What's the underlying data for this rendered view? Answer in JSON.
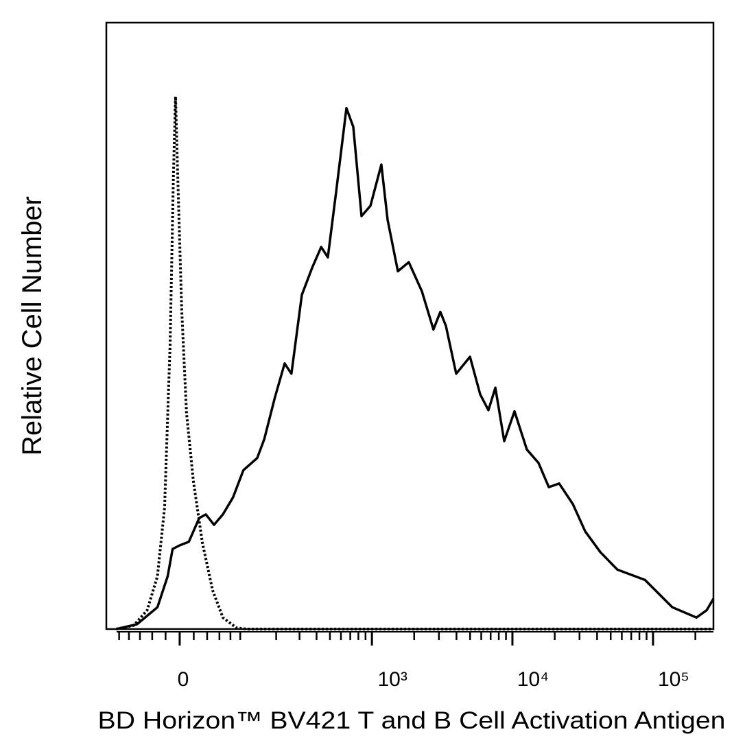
{
  "chart_data": {
    "type": "line",
    "title": "BD Horizon™ BV421 T and B Cell Activation Antigen",
    "y_label": "Relative Cell Number",
    "xscale": "biexponential",
    "xlim": [
      -130,
      269000
    ],
    "ylim": [
      0,
      100
    ],
    "xticks": [
      0,
      {
        "value": 1000,
        "label": "10³"
      },
      {
        "value": 10000,
        "label": "10⁴"
      },
      {
        "value": 100000,
        "label": "10⁵"
      }
    ],
    "xminorticks": [
      -100,
      -80,
      -60,
      -40,
      -20,
      20,
      40,
      60,
      80,
      100,
      200,
      300,
      400,
      500,
      600,
      700,
      800,
      900,
      2000,
      3000,
      4000,
      5000,
      6000,
      7000,
      8000,
      9000,
      20000,
      30000,
      40000,
      50000,
      60000,
      70000,
      80000,
      90000,
      200000
    ],
    "series": [
      {
        "color": "#000000",
        "dash": "solid",
        "x": [
          -106,
          -65,
          -32,
          -17,
          -10,
          0,
          13,
          28,
          38,
          51,
          66,
          85,
          107,
          141,
          161,
          195,
          232,
          261,
          312,
          372,
          432,
          483,
          554,
          657,
          736,
          843,
          976,
          1168,
          1293,
          1531,
          1832,
          2270,
          2743,
          3070,
          3363,
          3982,
          4988,
          5900,
          6751,
          7559,
          8746,
          10346,
          12668,
          15334,
          18146,
          21500,
          26918,
          32938,
          42140,
          55814,
          87634,
          137256,
          203562,
          240800,
          269000
        ],
        "values": [
          0,
          0.8,
          3.6,
          8.7,
          13.2,
          13.8,
          14.4,
          18.3,
          18.9,
          17.2,
          18.9,
          21.7,
          26.2,
          28.2,
          31.3,
          38.1,
          43.8,
          42.1,
          55.1,
          59.6,
          63.0,
          61.3,
          72.1,
          85.9,
          82.8,
          68.1,
          69.8,
          76.6,
          67.5,
          59.0,
          60.5,
          55.7,
          49.4,
          52.3,
          50.0,
          42.1,
          44.9,
          38.7,
          36.1,
          39.8,
          31.0,
          35.9,
          29.6,
          27.4,
          23.4,
          24.0,
          20.6,
          16.1,
          12.7,
          9.8,
          8.1,
          3.6,
          1.9,
          3.1,
          5.0
        ]
      },
      {
        "color": "#000000",
        "dash": "dotted",
        "x": [
          -106,
          -71,
          -48,
          -32,
          -21.5,
          -13.5,
          -8.7,
          -5.8,
          -2.9,
          2.9,
          9.7,
          19.5,
          32.6,
          48.6,
          66,
          92,
          115,
          269000
        ],
        "values": [
          0,
          0.6,
          3.1,
          8.7,
          20.0,
          47.1,
          75.4,
          87.8,
          75.4,
          52.6,
          35.6,
          24.4,
          14.3,
          6.4,
          1.9,
          0.2,
          0,
          0
        ]
      }
    ]
  }
}
